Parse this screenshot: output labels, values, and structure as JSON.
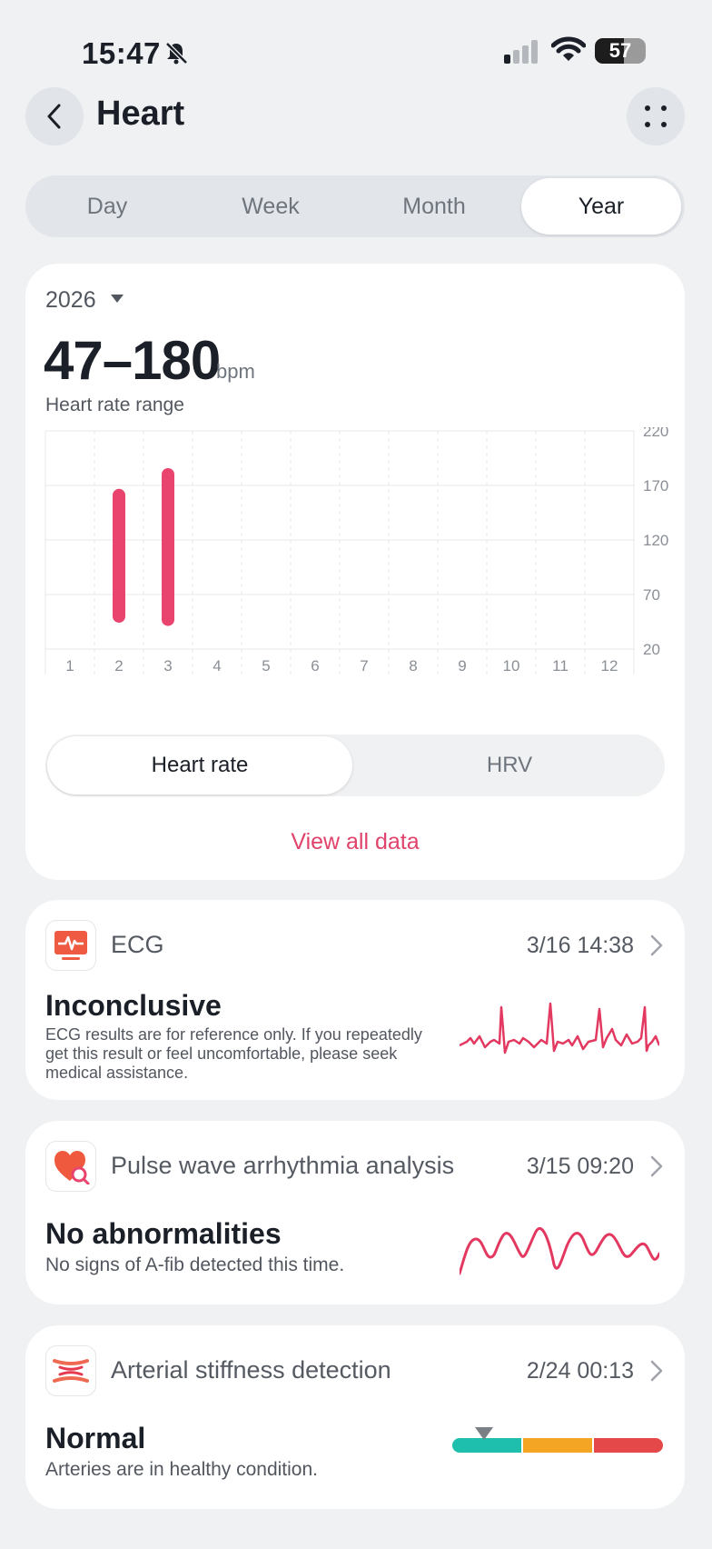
{
  "status_bar": {
    "time": "15:47",
    "battery": "57"
  },
  "header": {
    "title": "Heart"
  },
  "period_tabs": [
    "Day",
    "Week",
    "Month",
    "Year"
  ],
  "summary": {
    "year": "2026",
    "range": "47–180",
    "unit": "bpm",
    "label": "Heart rate range"
  },
  "chart_data": {
    "type": "bar",
    "categories": [
      "1",
      "2",
      "3",
      "4",
      "5",
      "6",
      "7",
      "8",
      "9",
      "10",
      "11",
      "12"
    ],
    "series": [
      {
        "low": [
          null,
          50,
          47,
          null,
          null,
          null,
          null,
          null,
          null,
          null,
          null,
          null
        ],
        "high": [
          null,
          161,
          180,
          null,
          null,
          null,
          null,
          null,
          null,
          null,
          null,
          null
        ]
      }
    ],
    "y_ticks": [
      "220",
      "170",
      "120",
      "70",
      "20"
    ],
    "ylim": [
      20,
      220
    ],
    "color": "#e8446d",
    "grid": true
  },
  "metric_toggle": {
    "heart_rate": "Heart rate",
    "hrv": "HRV"
  },
  "view_all": "View all data",
  "ecg": {
    "title": "ECG",
    "date": "3/16 14:38",
    "result": "Inconclusive",
    "desc": "ECG results are for reference only. If you repeatedly get this result or feel uncomfortable, please seek medical assistance."
  },
  "pwa": {
    "title": "Pulse wave arrhythmia analysis",
    "date": "3/15 09:20",
    "result": "No abnormalities",
    "desc": "No signs of A-fib detected this time."
  },
  "arterial": {
    "title": "Arterial stiffness detection",
    "date": "2/24 00:13",
    "result": "Normal",
    "desc": "Arteries are in healthy condition.",
    "scale_colors": [
      "#1fbfae",
      "#f5a524",
      "#e54848"
    ],
    "pointer_fraction": 0.15
  },
  "colors": {
    "accent": "#e0436b",
    "wave": "#e3385f"
  }
}
